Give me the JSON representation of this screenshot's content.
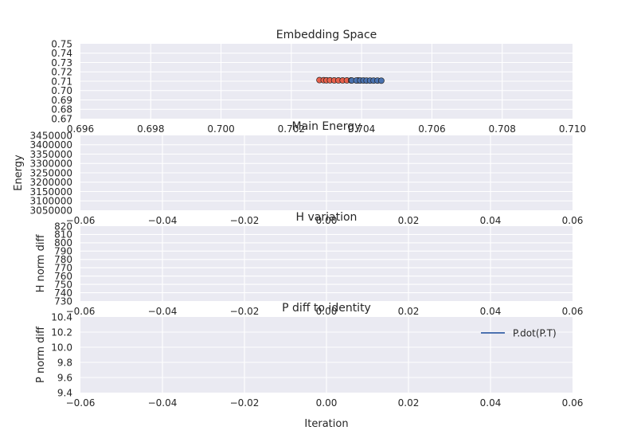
{
  "chart_data": [
    {
      "id": "embedding",
      "type": "scatter",
      "title": "Embedding Space",
      "xlabel": "",
      "ylabel": "",
      "xlim": [
        0.696,
        0.71
      ],
      "ylim": [
        0.67,
        0.75
      ],
      "xticks": [
        "0.696",
        "0.698",
        "0.700",
        "0.702",
        "0.704",
        "0.706",
        "0.708",
        "0.710"
      ],
      "yticks": [
        "0.75",
        "0.74",
        "0.73",
        "0.72",
        "0.71",
        "0.70",
        "0.69",
        "0.68",
        "0.67"
      ],
      "grid": true,
      "series": [
        {
          "name": "red",
          "color": "#e8604c",
          "points": [
            [
              0.7028,
              0.7112
            ],
            [
              0.70292,
              0.7111
            ],
            [
              0.703,
              0.711
            ],
            [
              0.7031,
              0.711
            ],
            [
              0.70322,
              0.7109
            ],
            [
              0.70334,
              0.7109
            ],
            [
              0.70346,
              0.7109
            ],
            [
              0.70358,
              0.7109
            ],
            [
              0.7037,
              0.7109
            ],
            [
              0.7039,
              0.7109
            ]
          ]
        },
        {
          "name": "blue",
          "color": "#4a72b0",
          "points": [
            [
              0.70372,
              0.7108
            ],
            [
              0.70385,
              0.7108
            ],
            [
              0.70396,
              0.7108
            ],
            [
              0.70405,
              0.7108
            ],
            [
              0.70414,
              0.7107
            ],
            [
              0.70424,
              0.7107
            ],
            [
              0.70434,
              0.7107
            ],
            [
              0.70445,
              0.7107
            ],
            [
              0.70456,
              0.7106
            ]
          ]
        }
      ]
    },
    {
      "id": "main-energy",
      "type": "line",
      "title": "Main Energy",
      "xlabel": "",
      "ylabel": "Energy",
      "xlim": [
        -0.06,
        0.06
      ],
      "ylim": [
        3050000,
        3450000
      ],
      "xticks": [
        "−0.06",
        "−0.04",
        "−0.02",
        "0.00",
        "0.02",
        "0.04",
        "0.06"
      ],
      "yticks": [
        "3450000",
        "3400000",
        "3350000",
        "3300000",
        "3250000",
        "3200000",
        "3150000",
        "3100000",
        "3050000"
      ],
      "grid": true,
      "series": []
    },
    {
      "id": "h-variation",
      "type": "line",
      "title": "H variation",
      "xlabel": "",
      "ylabel": "H norm diff",
      "xlim": [
        -0.06,
        0.06
      ],
      "ylim": [
        730,
        820
      ],
      "xticks": [
        "−0.06",
        "−0.04",
        "−0.02",
        "0.00",
        "0.02",
        "0.04",
        "0.06"
      ],
      "yticks": [
        "820",
        "810",
        "800",
        "790",
        "780",
        "770",
        "760",
        "750",
        "740",
        "730"
      ],
      "grid": true,
      "series": []
    },
    {
      "id": "p-diff",
      "type": "line",
      "title": "P diff to identity",
      "xlabel": "Iteration",
      "ylabel": "P norm diff",
      "xlim": [
        -0.06,
        0.06
      ],
      "ylim": [
        9.4,
        10.4
      ],
      "xticks": [
        "−0.06",
        "−0.04",
        "−0.02",
        "0.00",
        "0.02",
        "0.04",
        "0.06"
      ],
      "yticks": [
        "10.4",
        "10.2",
        "10.0",
        "9.8",
        "9.6",
        "9.4"
      ],
      "grid": true,
      "legend": "upper right",
      "series": [
        {
          "name": "P.dot(P.T)",
          "color": "#4c72b0",
          "points": []
        }
      ]
    }
  ]
}
